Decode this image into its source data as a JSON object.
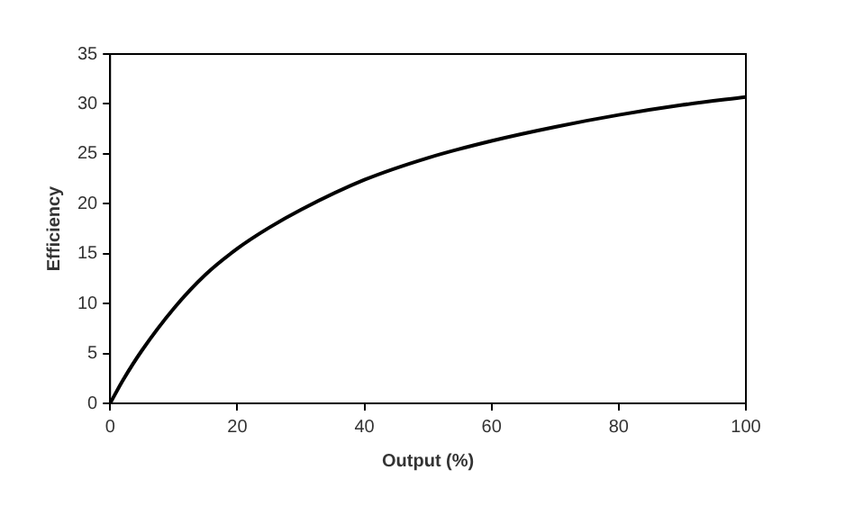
{
  "chart_data": {
    "type": "line",
    "xlabel": "Output (%)",
    "ylabel": "Efficiency",
    "x": [
      0,
      2,
      5,
      10,
      15,
      20,
      25,
      30,
      40,
      50,
      60,
      70,
      80,
      90,
      100
    ],
    "series": [
      {
        "color": "#000000",
        "values": [
          0,
          2.3,
          5.3,
          9.5,
          12.9,
          15.5,
          17.6,
          19.4,
          22.4,
          24.6,
          26.3,
          27.7,
          28.9,
          29.9,
          30.7
        ]
      }
    ],
    "xlim": [
      0,
      100
    ],
    "xticks": [
      0,
      20,
      40,
      60,
      80,
      100
    ],
    "ylim": [
      0,
      35
    ],
    "yticks": [
      0,
      5,
      10,
      15,
      20,
      25,
      30,
      35
    ],
    "grid": false,
    "legend": false,
    "marker": "none",
    "line_style": "solid"
  }
}
